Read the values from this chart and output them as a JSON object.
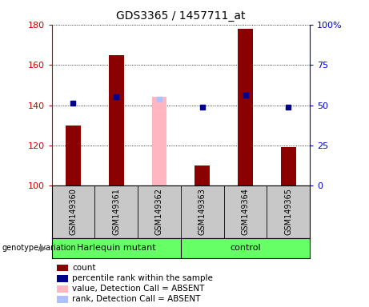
{
  "title": "GDS3365 / 1457711_at",
  "samples": [
    "GSM149360",
    "GSM149361",
    "GSM149362",
    "GSM149363",
    "GSM149364",
    "GSM149365"
  ],
  "count_values": [
    130,
    165,
    null,
    110,
    178,
    119
  ],
  "count_absent_values": [
    null,
    null,
    144,
    null,
    null,
    null
  ],
  "percentile_values": [
    141,
    144,
    null,
    139,
    145,
    139
  ],
  "percentile_absent_values": [
    null,
    null,
    143,
    null,
    null,
    null
  ],
  "ylim_left": [
    100,
    180
  ],
  "ylim_right": [
    0,
    100
  ],
  "yticks_left": [
    100,
    120,
    140,
    160,
    180
  ],
  "yticks_right": [
    0,
    25,
    50,
    75,
    100
  ],
  "ytick_labels_right": [
    "0",
    "25",
    "50",
    "75",
    "100%"
  ],
  "bar_color": "#8B0000",
  "bar_absent_color": "#FFB6C1",
  "percentile_color": "#00008B",
  "percentile_absent_color": "#B0C0FF",
  "left_axis_color": "#CC0000",
  "right_axis_color": "#0000CC",
  "grid_color": "#000000",
  "bar_width": 0.35,
  "sample_bg_color": "#C8C8C8",
  "genotype_bg_color": "#66FF66",
  "legend_items": [
    {
      "label": "count",
      "color": "#8B0000"
    },
    {
      "label": "percentile rank within the sample",
      "color": "#00008B"
    },
    {
      "label": "value, Detection Call = ABSENT",
      "color": "#FFB6C1"
    },
    {
      "label": "rank, Detection Call = ABSENT",
      "color": "#B0C0FF"
    }
  ]
}
